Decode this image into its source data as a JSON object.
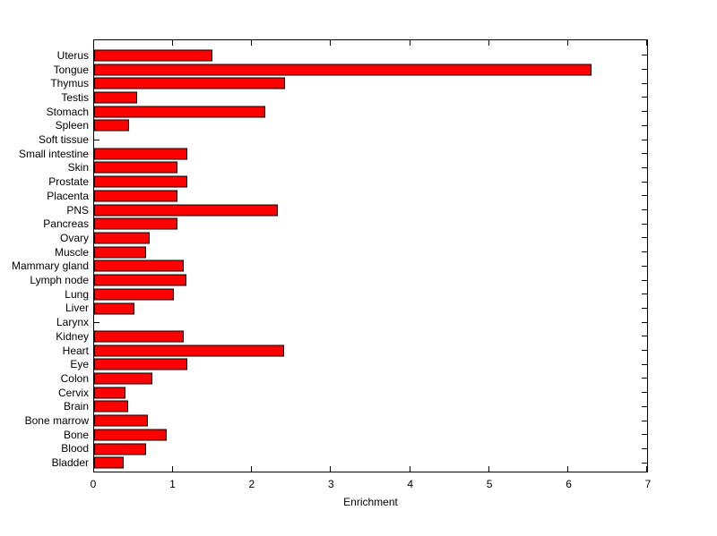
{
  "chart_data": {
    "type": "bar",
    "orientation": "horizontal",
    "xlabel": "Enrichment",
    "ylabel": "",
    "xlim": [
      0,
      7
    ],
    "x_ticks": [
      0,
      1,
      2,
      3,
      4,
      5,
      6,
      7
    ],
    "grid": false,
    "legend": false,
    "bar_color": "#FF0000",
    "bar_edge_color": "#000000",
    "axis_color": "#000000",
    "background_color": "#FFFFFF",
    "categories": [
      "Uterus",
      "Tongue",
      "Thymus",
      "Testis",
      "Stomach",
      "Spleen",
      "Soft tissue",
      "Small intestine",
      "Skin",
      "Prostate",
      "Placenta",
      "PNS",
      "Pancreas",
      "Ovary",
      "Muscle",
      "Mammary gland",
      "Lymph node",
      "Lung",
      "Liver",
      "Larynx",
      "Kidney",
      "Heart",
      "Eye",
      "Colon",
      "Cervix",
      "Brain",
      "Bone marrow",
      "Bone",
      "Blood",
      "Bladder"
    ],
    "values": [
      1.5,
      6.3,
      2.42,
      0.55,
      2.17,
      0.44,
      0,
      1.18,
      1.06,
      1.18,
      1.05,
      2.33,
      1.05,
      0.7,
      0.66,
      1.13,
      1.17,
      1.01,
      0.51,
      0,
      1.13,
      2.4,
      1.18,
      0.74,
      0.4,
      0.43,
      0.68,
      0.92,
      0.66,
      0.38
    ]
  }
}
